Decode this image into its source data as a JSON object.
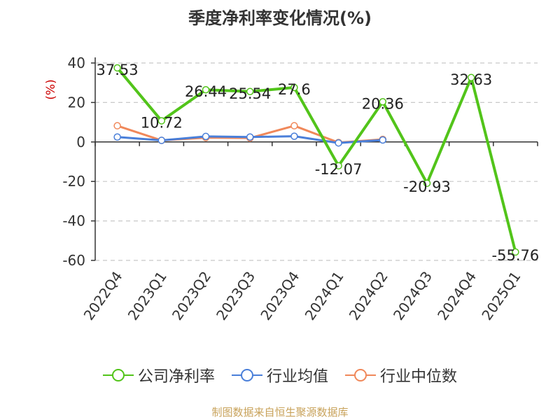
{
  "chart_data": {
    "type": "line",
    "title": "季度净利率变化情况(%)",
    "ylabel": "(%)",
    "xlabel": "",
    "categories": [
      "2022Q4",
      "2023Q1",
      "2023Q2",
      "2023Q3",
      "2023Q4",
      "2024Q1",
      "2024Q2",
      "2024Q3",
      "2024Q4",
      "2025Q1"
    ],
    "ylim": [
      -60,
      40
    ],
    "yticks": [
      40,
      20,
      0,
      -20,
      -40,
      -60
    ],
    "grid": true,
    "legend_position": "bottom",
    "series": [
      {
        "name": "公司净利率",
        "color": "#52c41a",
        "values": [
          37.53,
          10.72,
          26.44,
          25.54,
          27.6,
          -12.07,
          20.36,
          -20.93,
          32.63,
          -55.76
        ],
        "labels": [
          "37.53",
          "10.72",
          "26.44",
          "25.54",
          "27.6",
          "-12.07",
          "20.36",
          "-20.93",
          "32.63",
          "-55.76"
        ]
      },
      {
        "name": "行业均值",
        "color": "#4a7fd9",
        "values": [
          2.5,
          0.8,
          2.8,
          2.5,
          2.9,
          -0.5,
          1.0,
          null,
          null,
          null
        ]
      },
      {
        "name": "行业中位数",
        "color": "#f0885a",
        "values": [
          8.2,
          0.8,
          2.2,
          2.0,
          8.2,
          -0.3,
          1.3,
          null,
          null,
          null
        ]
      }
    ]
  },
  "source_text": "制图数据来自恒生聚源数据库"
}
